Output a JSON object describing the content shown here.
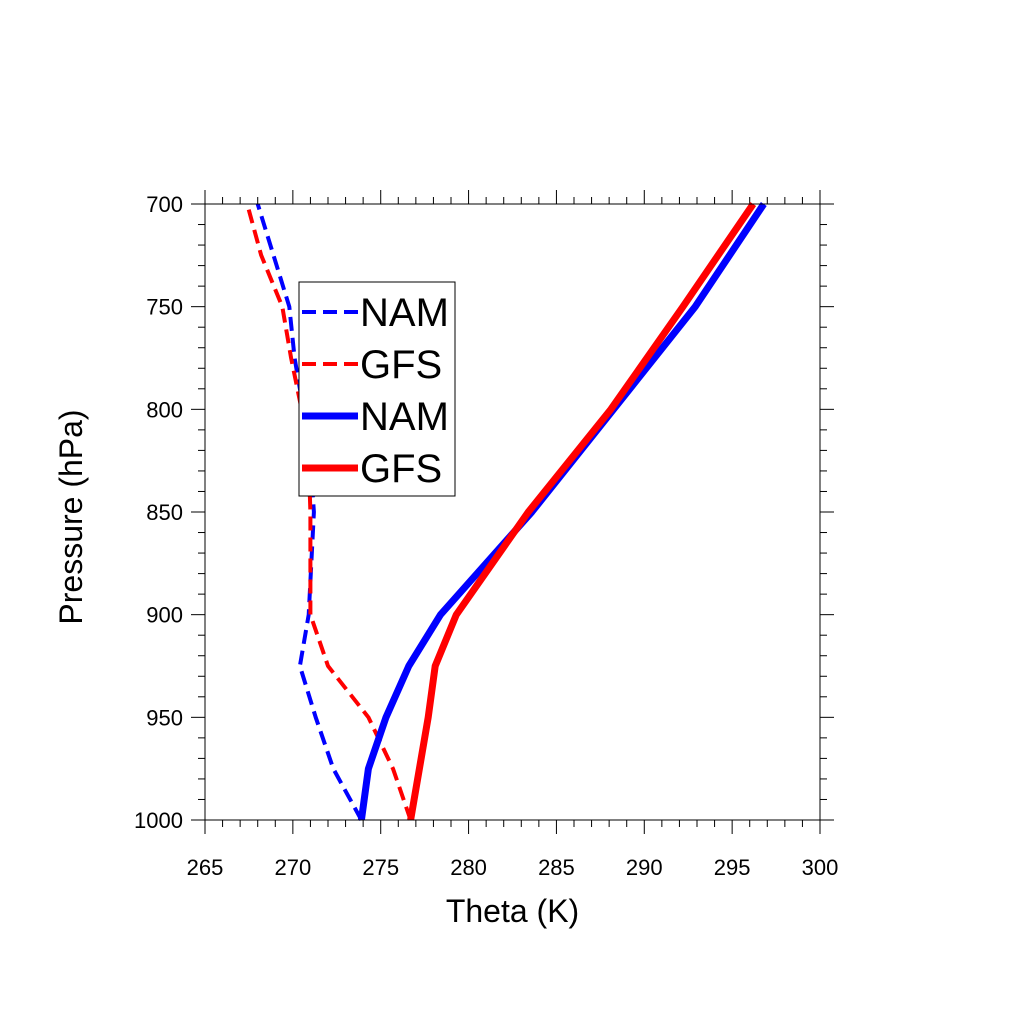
{
  "chart_data": {
    "type": "line",
    "xlabel": "Theta (K)",
    "ylabel": "Pressure (hPa)",
    "xlim": [
      265,
      300
    ],
    "ylim": [
      1000,
      700
    ],
    "y_axis_inverted": true,
    "grid": false,
    "legend_position": "upper-left-inside",
    "x_ticks": [
      "265",
      "270",
      "275",
      "280",
      "285",
      "290",
      "295",
      "300"
    ],
    "y_ticks": [
      "700",
      "750",
      "800",
      "850",
      "900",
      "950",
      "1000"
    ],
    "colors": {
      "nam": "#0000ff",
      "gfs": "#ff0000"
    },
    "series": [
      {
        "name": "NAM",
        "color": "#0000ff",
        "style": "dashed",
        "points": [
          [
            273.9,
            1000
          ],
          [
            272.3,
            975
          ],
          [
            271.3,
            950
          ],
          [
            270.4,
            925
          ],
          [
            270.9,
            900
          ],
          [
            271.2,
            850
          ],
          [
            271.0,
            825
          ],
          [
            270.6,
            800
          ],
          [
            270.1,
            775
          ],
          [
            269.8,
            750
          ],
          [
            268.9,
            725
          ],
          [
            268.0,
            700
          ]
        ]
      },
      {
        "name": "GFS",
        "color": "#ff0000",
        "style": "dashed",
        "points": [
          [
            276.7,
            1000
          ],
          [
            275.7,
            975
          ],
          [
            274.3,
            950
          ],
          [
            272.0,
            925
          ],
          [
            271.0,
            900
          ],
          [
            271.0,
            850
          ],
          [
            270.9,
            825
          ],
          [
            270.5,
            800
          ],
          [
            269.9,
            775
          ],
          [
            269.4,
            750
          ],
          [
            268.2,
            725
          ],
          [
            267.4,
            700
          ]
        ]
      },
      {
        "name": "NAM",
        "color": "#0000ff",
        "style": "solid",
        "points": [
          [
            273.9,
            1000
          ],
          [
            274.3,
            975
          ],
          [
            275.3,
            950
          ],
          [
            276.6,
            925
          ],
          [
            278.4,
            900
          ],
          [
            283.6,
            850
          ],
          [
            292.9,
            750
          ],
          [
            296.8,
            700
          ]
        ]
      },
      {
        "name": "GFS",
        "color": "#ff0000",
        "style": "solid",
        "points": [
          [
            276.7,
            1000
          ],
          [
            277.2,
            975
          ],
          [
            277.7,
            950
          ],
          [
            278.1,
            925
          ],
          [
            279.3,
            900
          ],
          [
            283.4,
            850
          ],
          [
            288.1,
            800
          ],
          [
            292.2,
            750
          ],
          [
            296.2,
            700
          ]
        ]
      }
    ]
  }
}
